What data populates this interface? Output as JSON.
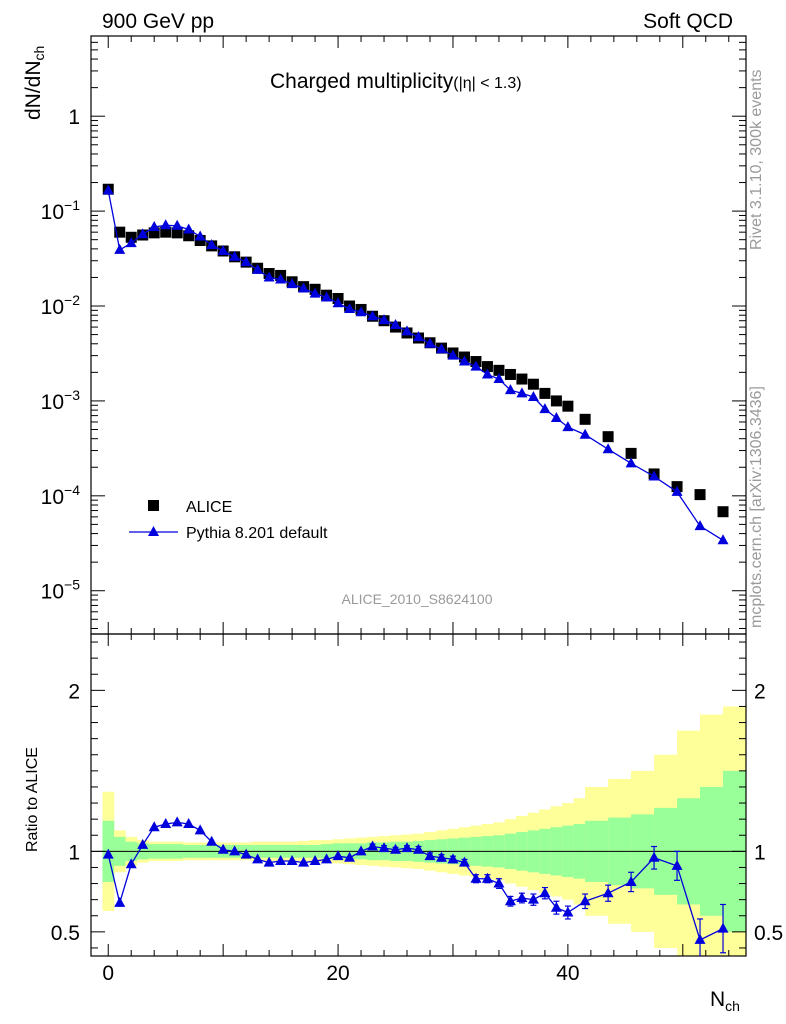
{
  "header": {
    "left": "900 GeV pp",
    "right": "Soft QCD"
  },
  "side_text": {
    "rivet": "Rivet 3.1.10,  300k events",
    "mcplots": "mcplots.cern.ch [arXiv:1306.3436]"
  },
  "chart_data": [
    {
      "type": "scatter",
      "title": "Charged multiplicity",
      "title_suffix": "(|η| < 1.3)",
      "ylabel_main": "dN/dN",
      "ylabel_sub": "ch",
      "xlabel_main": "N",
      "xlabel_sub": "ch",
      "xlim": [
        -1.5,
        55.5
      ],
      "ylim": [
        3.5e-06,
        7
      ],
      "ylog": true,
      "grid": false,
      "legend_position": "bottom-left",
      "watermark": "ALICE_2010_S8624100",
      "y_tick_labels": [
        {
          "base": "10",
          "exp": "−5",
          "value": 1e-05
        },
        {
          "base": "10",
          "exp": "−4",
          "value": 0.0001
        },
        {
          "base": "10",
          "exp": "−3",
          "value": 0.001
        },
        {
          "base": "10",
          "exp": "−2",
          "value": 0.01
        },
        {
          "base": "10",
          "exp": "−1",
          "value": 0.1
        },
        {
          "base": "1",
          "exp": "",
          "value": 1
        }
      ],
      "series": [
        {
          "name": "ALICE",
          "marker": "square",
          "color": "#000000",
          "points": [
            [
              0,
              0.17
            ],
            [
              1,
              0.06
            ],
            [
              2,
              0.053
            ],
            [
              3,
              0.056
            ],
            [
              4,
              0.059
            ],
            [
              5,
              0.06
            ],
            [
              6,
              0.059
            ],
            [
              7,
              0.055
            ],
            [
              8,
              0.049
            ],
            [
              9,
              0.043
            ],
            [
              10,
              0.038
            ],
            [
              11,
              0.033
            ],
            [
              12,
              0.029
            ],
            [
              13,
              0.025
            ],
            [
              14,
              0.022
            ],
            [
              15,
              0.021
            ],
            [
              16,
              0.018
            ],
            [
              17,
              0.016
            ],
            [
              18,
              0.015
            ],
            [
              19,
              0.013
            ],
            [
              20,
              0.012
            ],
            [
              21,
              0.01
            ],
            [
              22,
              0.0092
            ],
            [
              23,
              0.0078
            ],
            [
              24,
              0.007
            ],
            [
              25,
              0.006
            ],
            [
              26,
              0.0052
            ],
            [
              27,
              0.0046
            ],
            [
              28,
              0.0041
            ],
            [
              29,
              0.0036
            ],
            [
              30,
              0.0032
            ],
            [
              31,
              0.0029
            ],
            [
              32,
              0.0026
            ],
            [
              33,
              0.0023
            ],
            [
              34,
              0.0021
            ],
            [
              35,
              0.0019
            ],
            [
              36,
              0.0017
            ],
            [
              37,
              0.0015
            ],
            [
              38,
              0.0012
            ],
            [
              39,
              0.001
            ],
            [
              40,
              0.00088
            ],
            [
              41.5,
              0.00064
            ],
            [
              43.5,
              0.00042
            ],
            [
              45.5,
              0.00028
            ],
            [
              47.5,
              0.00017
            ],
            [
              49.5,
              0.000125
            ],
            [
              51.5,
              0.000103
            ],
            [
              53.5,
              6.8e-05
            ]
          ]
        },
        {
          "name": "Pythia 8.201 default",
          "marker": "triangle",
          "color": "#0000dd",
          "points": [
            [
              0,
              0.165
            ],
            [
              1,
              0.039
            ],
            [
              2,
              0.046
            ],
            [
              3,
              0.057
            ],
            [
              4,
              0.068
            ],
            [
              5,
              0.071
            ],
            [
              6,
              0.07
            ],
            [
              7,
              0.064
            ],
            [
              8,
              0.054
            ],
            [
              9,
              0.044
            ],
            [
              10,
              0.038
            ],
            [
              11,
              0.033
            ],
            [
              12,
              0.029
            ],
            [
              13,
              0.024
            ],
            [
              14,
              0.02
            ],
            [
              15,
              0.019
            ],
            [
              16,
              0.017
            ],
            [
              17,
              0.0153
            ],
            [
              18,
              0.0135
            ],
            [
              19,
              0.0123
            ],
            [
              20,
              0.0107
            ],
            [
              21,
              0.0093
            ],
            [
              22,
              0.0086
            ],
            [
              23,
              0.0078
            ],
            [
              24,
              0.0071
            ],
            [
              25,
              0.0063
            ],
            [
              26,
              0.0054
            ],
            [
              27,
              0.0047
            ],
            [
              28,
              0.004
            ],
            [
              29,
              0.0035
            ],
            [
              30,
              0.003
            ],
            [
              31,
              0.0026
            ],
            [
              32,
              0.0023
            ],
            [
              33,
              0.0019
            ],
            [
              34,
              0.0017
            ],
            [
              35,
              0.0013
            ],
            [
              36,
              0.0012
            ],
            [
              37,
              0.0011
            ],
            [
              38,
              0.00082
            ],
            [
              39,
              0.00066
            ],
            [
              40,
              0.00053
            ],
            [
              41.5,
              0.00044
            ],
            [
              43.5,
              0.00031
            ],
            [
              45.5,
              0.00022
            ],
            [
              47.5,
              0.00016
            ],
            [
              49.5,
              0.00011
            ],
            [
              51.5,
              4.8e-05
            ],
            [
              53.5,
              3.4e-05
            ]
          ]
        }
      ]
    },
    {
      "type": "scatter",
      "ylabel": "Ratio to ALICE",
      "xlim": [
        -1.5,
        55.5
      ],
      "ylim": [
        0.35,
        2.35
      ],
      "grid": false,
      "x_tick_labels": [
        "0",
        "20",
        "40"
      ],
      "x_ticks": [
        0,
        20,
        40
      ],
      "y_tick_labels": [
        "0.5",
        "1",
        "2"
      ],
      "y_ticks": [
        0.5,
        1,
        2
      ],
      "reference_line": 1,
      "bands": {
        "edges": [
          0,
          1,
          2,
          3,
          4,
          5,
          6,
          7,
          8,
          9,
          10,
          11,
          12,
          13,
          14,
          15,
          16,
          17,
          18,
          19,
          20,
          21,
          22,
          23,
          24,
          25,
          26,
          27,
          28,
          29,
          30,
          31,
          32,
          33,
          34,
          35,
          36,
          37,
          38,
          39,
          40,
          41,
          42,
          44,
          46,
          48,
          50,
          52,
          54,
          56
        ],
        "inner_color": "#99ff99",
        "outer_color": "#ffff99",
        "inner": [
          0.19,
          0.09,
          0.06,
          0.05,
          0.045,
          0.045,
          0.045,
          0.04,
          0.04,
          0.04,
          0.04,
          0.04,
          0.04,
          0.04,
          0.04,
          0.04,
          0.04,
          0.04,
          0.04,
          0.045,
          0.05,
          0.05,
          0.05,
          0.055,
          0.055,
          0.06,
          0.06,
          0.065,
          0.07,
          0.075,
          0.08,
          0.085,
          0.09,
          0.095,
          0.1,
          0.11,
          0.12,
          0.13,
          0.14,
          0.15,
          0.16,
          0.17,
          0.19,
          0.21,
          0.23,
          0.27,
          0.33,
          0.4,
          0.5
        ],
        "outer": [
          0.37,
          0.13,
          0.09,
          0.07,
          0.06,
          0.06,
          0.06,
          0.055,
          0.055,
          0.055,
          0.055,
          0.055,
          0.055,
          0.06,
          0.06,
          0.06,
          0.06,
          0.065,
          0.07,
          0.07,
          0.075,
          0.08,
          0.085,
          0.09,
          0.095,
          0.1,
          0.105,
          0.11,
          0.12,
          0.13,
          0.14,
          0.15,
          0.16,
          0.17,
          0.18,
          0.2,
          0.22,
          0.24,
          0.26,
          0.28,
          0.3,
          0.33,
          0.4,
          0.45,
          0.5,
          0.6,
          0.75,
          0.85,
          0.9
        ]
      },
      "series": [
        {
          "name": "Pythia 8.201 default",
          "marker": "triangle",
          "color": "#0000dd",
          "points": [
            [
              0,
              0.98
            ],
            [
              1,
              0.68
            ],
            [
              2,
              0.92
            ],
            [
              3,
              1.04
            ],
            [
              4,
              1.15
            ],
            [
              5,
              1.17
            ],
            [
              6,
              1.18
            ],
            [
              7,
              1.17
            ],
            [
              8,
              1.13
            ],
            [
              9,
              1.06
            ],
            [
              10,
              1.01
            ],
            [
              11,
              1.0
            ],
            [
              12,
              0.98
            ],
            [
              13,
              0.95
            ],
            [
              14,
              0.93
            ],
            [
              15,
              0.94
            ],
            [
              16,
              0.94
            ],
            [
              17,
              0.93
            ],
            [
              18,
              0.94
            ],
            [
              19,
              0.95
            ],
            [
              20,
              0.97
            ],
            [
              21,
              0.96
            ],
            [
              22,
              1.0
            ],
            [
              23,
              1.03
            ],
            [
              24,
              1.02
            ],
            [
              25,
              1.01
            ],
            [
              26,
              1.02
            ],
            [
              27,
              1.01
            ],
            [
              28,
              0.97
            ],
            [
              29,
              0.96
            ],
            [
              30,
              0.95
            ],
            [
              31,
              0.93
            ],
            [
              32,
              0.83
            ],
            [
              33,
              0.83
            ],
            [
              34,
              0.8
            ],
            [
              35,
              0.69
            ],
            [
              36,
              0.71
            ],
            [
              37,
              0.7
            ],
            [
              38,
              0.74
            ],
            [
              39,
              0.65
            ],
            [
              40,
              0.62
            ],
            [
              41.5,
              0.69
            ],
            [
              43.5,
              0.74
            ],
            [
              45.5,
              0.81
            ],
            [
              47.5,
              0.96
            ],
            [
              49.5,
              0.91
            ],
            [
              51.5,
              0.45
            ],
            [
              53.5,
              0.52
            ]
          ],
          "errors": [
            0.01,
            0.01,
            0.01,
            0.01,
            0.01,
            0.01,
            0.01,
            0.01,
            0.01,
            0.01,
            0.01,
            0.01,
            0.01,
            0.01,
            0.01,
            0.01,
            0.01,
            0.01,
            0.01,
            0.01,
            0.01,
            0.01,
            0.01,
            0.015,
            0.015,
            0.015,
            0.015,
            0.02,
            0.02,
            0.02,
            0.02,
            0.02,
            0.025,
            0.025,
            0.03,
            0.03,
            0.03,
            0.035,
            0.035,
            0.04,
            0.04,
            0.045,
            0.05,
            0.06,
            0.07,
            0.09,
            0.13,
            0.15
          ]
        }
      ]
    }
  ]
}
